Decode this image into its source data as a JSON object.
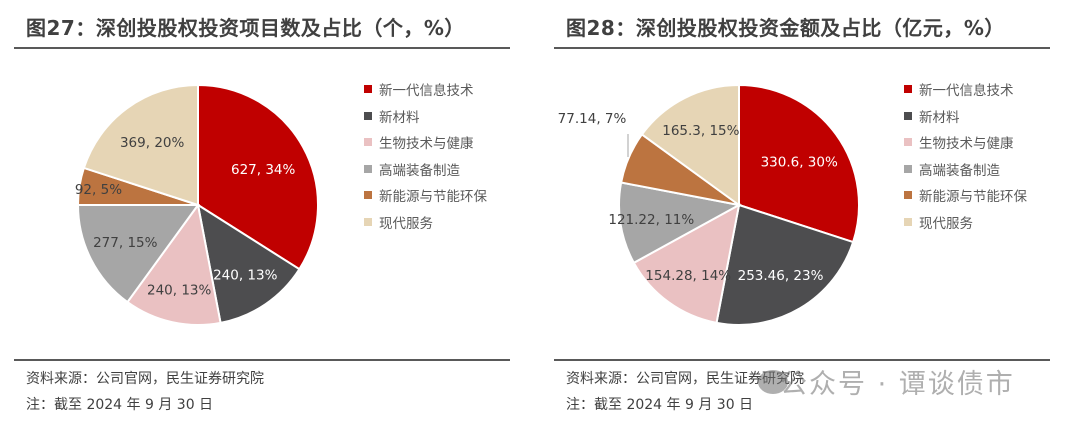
{
  "charts": [
    {
      "title": "图27：深创投股权投资项目数及占比（个，%）",
      "source": "资料来源：公司官网，民生证券研究院",
      "note": "注：截至 2024 年 9 月 30 日"
    },
    {
      "title": "图28：深创投股权投资金额及占比（亿元，%）",
      "source": "资料来源：公司官网，民生证券研究院",
      "note": "注：截至 2024 年 9 月 30 日"
    }
  ],
  "legend": [
    {
      "label": "新一代信息技术",
      "color": "#C00000"
    },
    {
      "label": "新材料",
      "color": "#4D4D4F"
    },
    {
      "label": "生物技术与健康",
      "color": "#EAC1C2"
    },
    {
      "label": "高端装备制造",
      "color": "#A6A6A6"
    },
    {
      "label": "新能源与节能环保",
      "color": "#BC7440"
    },
    {
      "label": "现代服务",
      "color": "#E6D5B5"
    }
  ],
  "watermark": "公众号 · 谭谈债市",
  "chart_data": [
    {
      "type": "pie",
      "title": "图27：深创投股权投资项目数及占比（个，%）",
      "unit": "个",
      "categories": [
        "新一代信息技术",
        "新材料",
        "生物技术与健康",
        "高端装备制造",
        "新能源与节能环保",
        "现代服务"
      ],
      "values": [
        627,
        240,
        240,
        277,
        92,
        369
      ],
      "percents": [
        34,
        13,
        13,
        15,
        5,
        20
      ],
      "labels": [
        "627, 34%",
        "240, 13%",
        "240, 13%",
        "277, 15%",
        "92, 5%",
        "369, 20%"
      ],
      "colors": [
        "#C00000",
        "#4D4D4F",
        "#EAC1C2",
        "#A6A6A6",
        "#BC7440",
        "#E6D5B5"
      ],
      "legend_position": "right",
      "start_angle": 0,
      "direction": "clockwise"
    },
    {
      "type": "pie",
      "title": "图28：深创投股权投资金额及占比（亿元，%）",
      "unit": "亿元",
      "categories": [
        "新一代信息技术",
        "新材料",
        "生物技术与健康",
        "高端装备制造",
        "新能源与节能环保",
        "现代服务"
      ],
      "values": [
        330.6,
        253.46,
        154.28,
        121.22,
        77.14,
        165.3
      ],
      "percents": [
        30,
        23,
        14,
        11,
        7,
        15
      ],
      "labels": [
        "330.6, 30%",
        "253.46, 23%",
        "154.28, 14%",
        "121.22, 11%",
        "77.14, 7%",
        "165.3, 15%"
      ],
      "colors": [
        "#C00000",
        "#4D4D4F",
        "#EAC1C2",
        "#A6A6A6",
        "#BC7440",
        "#E6D5B5"
      ],
      "legend_position": "right",
      "start_angle": 0,
      "direction": "clockwise"
    }
  ]
}
